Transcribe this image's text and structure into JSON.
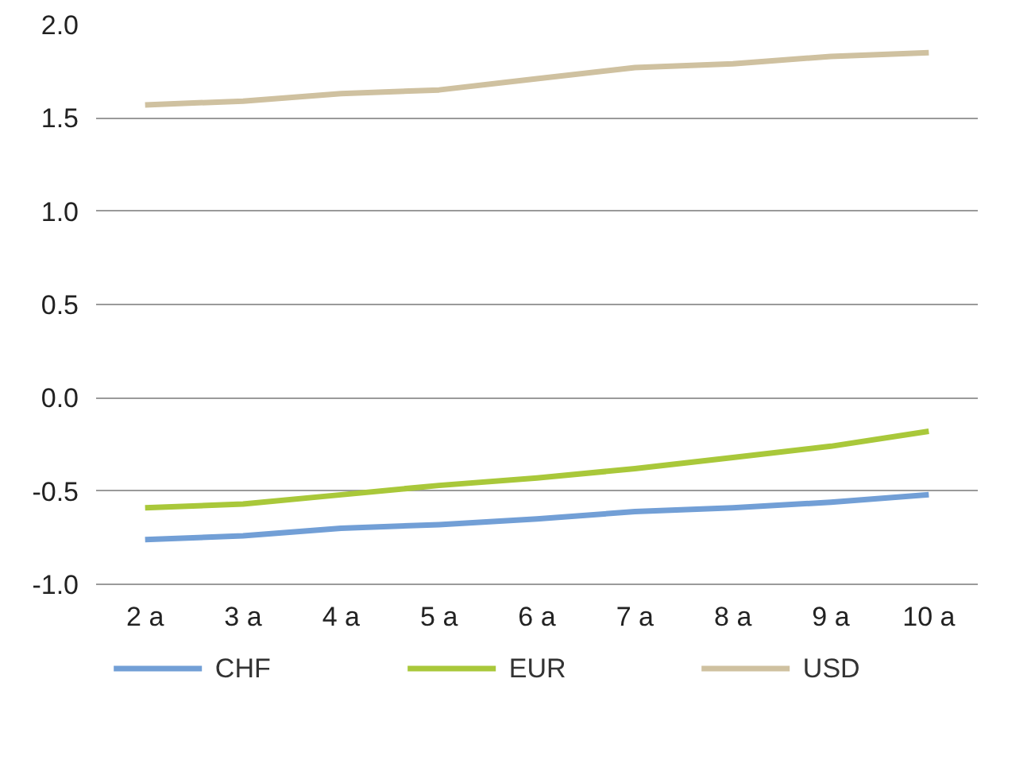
{
  "chart_data": {
    "type": "line",
    "categories": [
      "2 a",
      "3 a",
      "4 a",
      "5 a",
      "6 a",
      "7 a",
      "8 a",
      "9 a",
      "10 a"
    ],
    "series": [
      {
        "name": "CHF",
        "color": "#729fd6",
        "values": [
          -0.76,
          -0.74,
          -0.7,
          -0.68,
          -0.65,
          -0.61,
          -0.59,
          -0.56,
          -0.52
        ]
      },
      {
        "name": "EUR",
        "color": "#a9c83a",
        "values": [
          -0.59,
          -0.57,
          -0.52,
          -0.47,
          -0.43,
          -0.38,
          -0.32,
          -0.26,
          -0.18
        ]
      },
      {
        "name": "USD",
        "color": "#cfc1a0",
        "values": [
          1.57,
          1.59,
          1.63,
          1.65,
          1.71,
          1.77,
          1.79,
          1.83,
          1.85
        ]
      }
    ],
    "ylim": [
      -1.0,
      2.0
    ],
    "yticks": [
      {
        "value": -1.0,
        "label": "-1.0"
      },
      {
        "value": -0.5,
        "label": "-0.5"
      },
      {
        "value": 0.0,
        "label": "0.0"
      },
      {
        "value": 0.5,
        "label": "0.5"
      },
      {
        "value": 1.0,
        "label": "1.0"
      },
      {
        "value": 1.5,
        "label": "1.5"
      },
      {
        "value": 2.0,
        "label": "2.0"
      }
    ],
    "grid": "y",
    "legend": "bottom",
    "marker": "none",
    "line_style": "solid"
  }
}
